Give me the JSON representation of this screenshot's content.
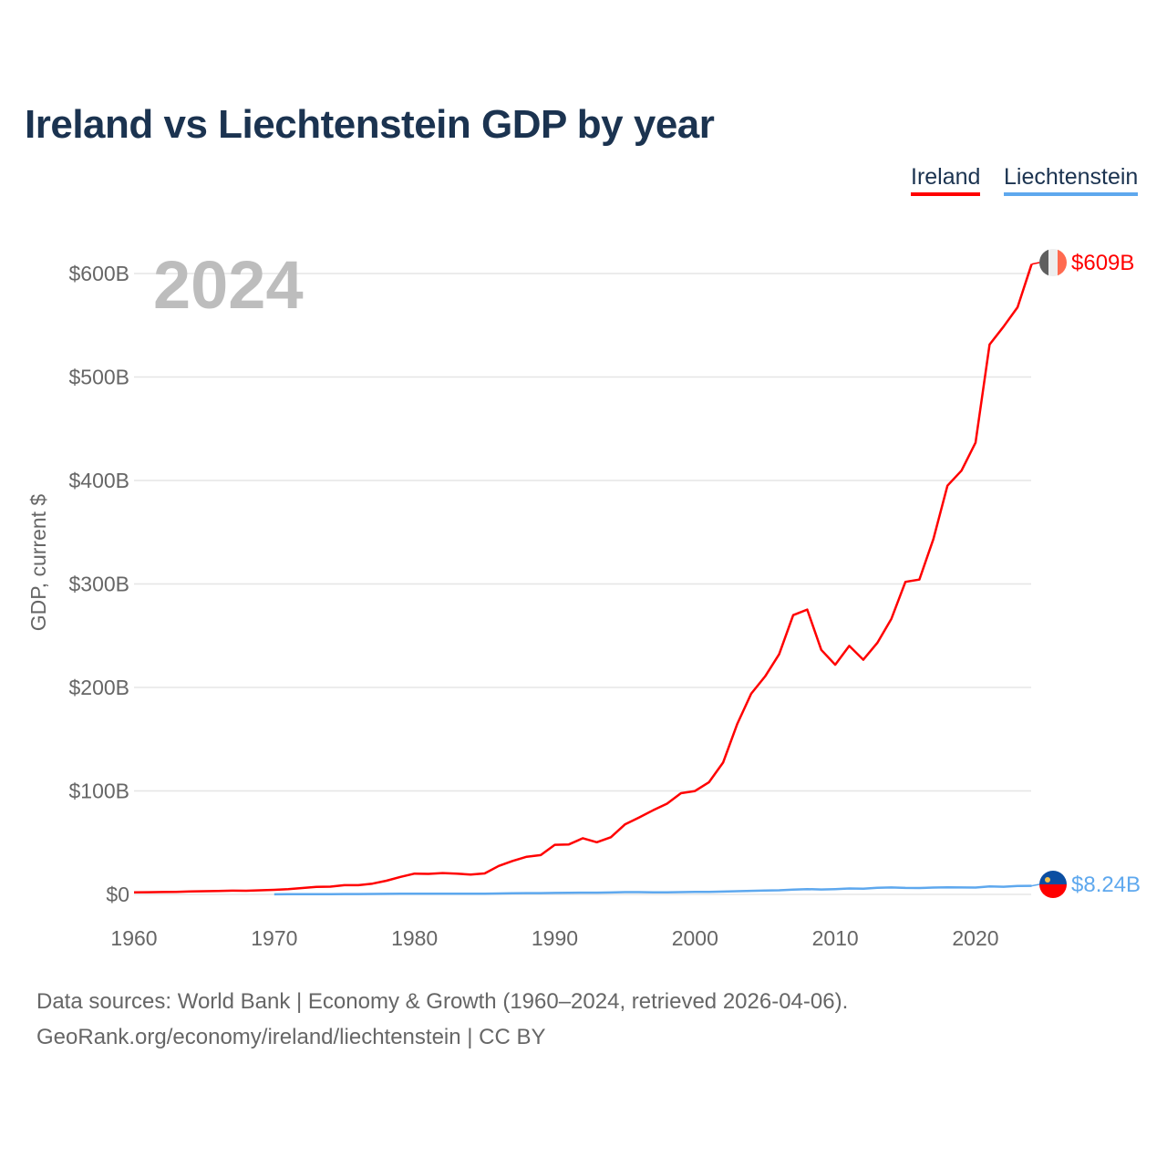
{
  "header": {
    "title": "Ireland vs Liechtenstein GDP by year"
  },
  "legend": [
    {
      "label": "Ireland",
      "color": "#ff0000"
    },
    {
      "label": "Liechtenstein",
      "color": "#5ea8ee"
    }
  ],
  "footer": {
    "line1": "Data sources: World Bank | Economy & Growth (1960–2024, retrieved 2026-04-06).",
    "line2": "GeoRank.org/economy/ireland/liechtenstein | CC BY"
  },
  "chart_data": {
    "type": "line",
    "title": "Ireland vs Liechtenstein GDP by year",
    "ylabel": "GDP, current $",
    "xlabel": "",
    "current_year_label": "2024",
    "xlim": [
      1960,
      2024
    ],
    "ylim": [
      0,
      600
    ],
    "y_unit": "billion USD",
    "x_ticks": [
      1960,
      1970,
      1980,
      1990,
      2000,
      2010,
      2020
    ],
    "y_ticks": [
      {
        "v": 0,
        "label": "$0"
      },
      {
        "v": 100,
        "label": "$100B"
      },
      {
        "v": 200,
        "label": "$200B"
      },
      {
        "v": 300,
        "label": "$300B"
      },
      {
        "v": 400,
        "label": "$400B"
      },
      {
        "v": 500,
        "label": "$500B"
      },
      {
        "v": 600,
        "label": "$600B"
      }
    ],
    "grid": true,
    "legend_position": "top-right",
    "series": [
      {
        "name": "Ireland",
        "color": "#ff0000",
        "start_year": 1960,
        "end_label": "$609B",
        "values": [
          1.9,
          2.1,
          2.3,
          2.5,
          2.9,
          3.1,
          3.3,
          3.6,
          3.5,
          4.0,
          4.4,
          5.0,
          6.2,
          7.3,
          7.5,
          8.9,
          8.9,
          10.4,
          13.2,
          16.9,
          20.1,
          19.8,
          20.6,
          20.0,
          19.2,
          20.3,
          27.5,
          32.3,
          36.4,
          38.0,
          47.9,
          48.3,
          54.3,
          50.4,
          55.2,
          67.6,
          74.3,
          81.2,
          87.7,
          97.8,
          99.9,
          108.5,
          127.4,
          164.4,
          193.9,
          210.7,
          232.1,
          269.9,
          275.2,
          236.3,
          221.9,
          240.2,
          226.8,
          243.1,
          266.3,
          302.0,
          304.2,
          343.4,
          395.0,
          409.5,
          436.6,
          531.4,
          548.6,
          567.4,
          609.0
        ]
      },
      {
        "name": "Liechtenstein",
        "color": "#5ea8ee",
        "start_year": 1970,
        "end_label": "$8.24B",
        "values": [
          0.13,
          0.16,
          0.19,
          0.24,
          0.29,
          0.34,
          0.37,
          0.42,
          0.55,
          0.66,
          0.7,
          0.65,
          0.63,
          0.62,
          0.6,
          0.62,
          0.86,
          1.07,
          1.22,
          1.23,
          1.42,
          1.48,
          1.69,
          1.68,
          1.86,
          2.23,
          2.23,
          2.0,
          2.0,
          2.2,
          2.48,
          2.48,
          2.69,
          3.07,
          3.45,
          3.66,
          4.0,
          4.6,
          5.08,
          4.74,
          5.08,
          5.74,
          5.46,
          6.39,
          6.66,
          6.27,
          6.21,
          6.6,
          6.86,
          6.69,
          6.63,
          7.71,
          7.37,
          8.1,
          8.24
        ]
      }
    ]
  }
}
